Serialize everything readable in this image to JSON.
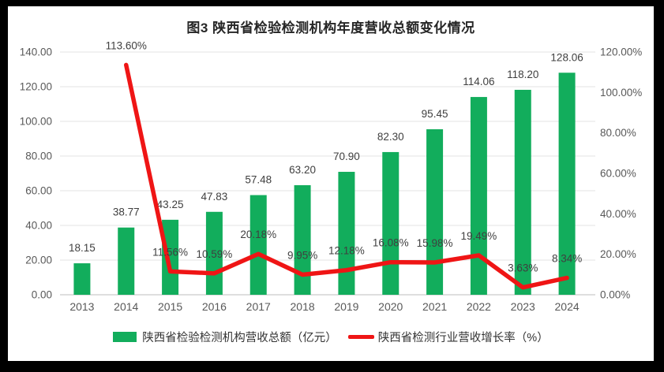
{
  "chart_data": {
    "type": "combo-bar-line",
    "title": "图3  陕西省检验检测机构年度营收总额变化情况",
    "categories": [
      "2013",
      "2014",
      "2015",
      "2016",
      "2017",
      "2018",
      "2019",
      "2020",
      "2021",
      "2022",
      "2023",
      "2024"
    ],
    "series": [
      {
        "name": "陕西省检验检测机构营收总额（亿元）",
        "type": "bar",
        "axis": "left",
        "color": "#12AD5C",
        "values": [
          18.15,
          38.77,
          43.25,
          47.83,
          57.48,
          63.2,
          70.9,
          82.3,
          95.45,
          114.06,
          118.2,
          128.06
        ],
        "labels": [
          "18.15",
          "38.77",
          "43.25",
          "47.83",
          "57.48",
          "63.20",
          "70.90",
          "82.30",
          "95.45",
          "114.06",
          "118.20",
          "128.06"
        ]
      },
      {
        "name": "陕西省检测行业营收增长率（%）",
        "type": "line",
        "axis": "right",
        "color": "#EF1515",
        "start_index": 1,
        "values": [
          113.6,
          11.56,
          10.59,
          20.18,
          9.95,
          12.18,
          16.08,
          15.98,
          19.49,
          3.63,
          8.34
        ],
        "labels": [
          "113.60%",
          "11.56%",
          "10.59%",
          "20.18%",
          "9.95%",
          "12.18%",
          "16.08%",
          "15.98%",
          "19.49%",
          "3.63%",
          "8.34%"
        ]
      }
    ],
    "left_axis": {
      "min": 0,
      "max": 140,
      "step": 20,
      "ticks": [
        "0.00",
        "20.00",
        "40.00",
        "60.00",
        "80.00",
        "100.00",
        "120.00",
        "140.00"
      ]
    },
    "right_axis": {
      "min": 0,
      "max": 120,
      "step": 20,
      "ticks": [
        "0.00%",
        "20.00%",
        "40.00%",
        "60.00%",
        "80.00%",
        "100.00%",
        "120.00%"
      ]
    },
    "grid": true,
    "legend_position": "bottom"
  }
}
